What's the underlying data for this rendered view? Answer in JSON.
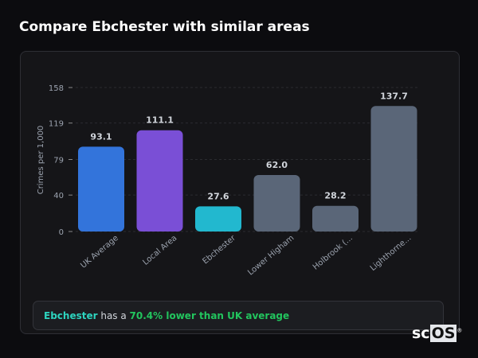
{
  "title": "Compare Ebchester with similar areas",
  "chart_data": {
    "type": "bar",
    "categories": [
      "UK Average",
      "Local Area",
      "Ebchester",
      "Lower Higham",
      "Holbrook (...",
      "Lighthorne..."
    ],
    "values": [
      93.1,
      111.1,
      27.6,
      62.0,
      28.2,
      137.7
    ],
    "value_labels": [
      "93.1",
      "111.1",
      "27.6",
      "62.0",
      "28.2",
      "137.7"
    ],
    "colors": [
      "#3374db",
      "#7a4fd6",
      "#22b8cf",
      "#5a6678",
      "#5a6678",
      "#5a6678"
    ],
    "ylabel": "Crimes per 1,000",
    "yticks": [
      0,
      40,
      79,
      119,
      158
    ],
    "ylim": [
      0,
      158
    ],
    "grid": true
  },
  "summary": {
    "place": "Ebchester",
    "middle": " has a ",
    "comparison": "70.4% lower than UK average"
  },
  "logo": {
    "text_a": "sc",
    "text_b": "OS",
    "mark": "®"
  }
}
